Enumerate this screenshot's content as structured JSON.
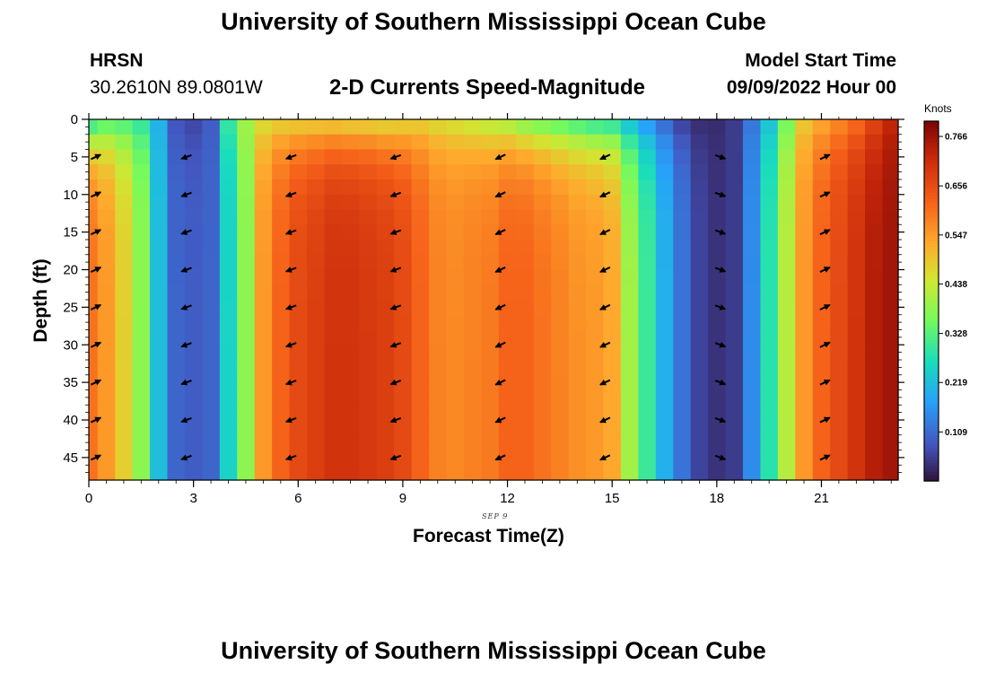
{
  "header": {
    "title": "University of Southern Mississippi Ocean Cube",
    "station": "HRSN",
    "coords": "30.2610N  89.0801W",
    "plot_title": "2-D Currents Speed-Magnitude",
    "model_start_label": "Model Start Time",
    "model_start_value": "09/09/2022 Hour 00"
  },
  "footer": {
    "title": "University of Southern Mississippi Ocean Cube"
  },
  "chart_data": {
    "type": "heatmap",
    "title": "2-D Currents Speed-Magnitude",
    "xlabel": "Forecast Time(Z)",
    "ylabel": "Depth (ft)",
    "x_date_label": "SEP 9",
    "xlim": [
      0,
      23.2
    ],
    "ylim": [
      48,
      0
    ],
    "x_ticks": [
      0,
      3,
      6,
      9,
      12,
      15,
      18,
      21
    ],
    "x_tick_labels": [
      "0",
      "3",
      "6",
      "9",
      "12",
      "15",
      "18",
      "21"
    ],
    "y_ticks": [
      0,
      5,
      10,
      15,
      20,
      25,
      30,
      35,
      40,
      45
    ],
    "y_tick_labels": [
      "0",
      "5",
      "10",
      "15",
      "20",
      "25",
      "30",
      "35",
      "40",
      "45"
    ],
    "colorbar": {
      "title": "Knots",
      "ticks": [
        0.766,
        0.656,
        0.547,
        0.438,
        0.328,
        0.219,
        0.109
      ],
      "tick_labels": [
        "0.766",
        "0.656",
        "0.547",
        "0.438",
        "0.328",
        "0.219",
        "0.109"
      ],
      "range": [
        0.0,
        0.8
      ]
    },
    "hours": [
      0,
      0.5,
      1,
      1.5,
      2,
      2.5,
      3,
      3.5,
      4,
      4.5,
      5,
      5.5,
      6,
      6.5,
      7,
      7.5,
      8,
      8.5,
      9,
      9.5,
      10,
      10.5,
      11,
      11.5,
      12,
      12.5,
      13,
      13.5,
      14,
      14.5,
      15,
      15.5,
      16,
      16.5,
      17,
      17.5,
      18,
      18.5,
      19,
      19.5,
      20,
      20.5,
      21,
      21.5,
      22,
      22.5,
      23
    ],
    "speed_deep_knots": [
      0.6,
      0.55,
      0.48,
      0.38,
      0.22,
      0.1,
      0.09,
      0.1,
      0.25,
      0.38,
      0.55,
      0.62,
      0.66,
      0.68,
      0.7,
      0.7,
      0.69,
      0.68,
      0.66,
      0.62,
      0.58,
      0.57,
      0.58,
      0.59,
      0.62,
      0.62,
      0.6,
      0.58,
      0.56,
      0.55,
      0.53,
      0.4,
      0.3,
      0.2,
      0.12,
      0.06,
      0.04,
      0.05,
      0.15,
      0.28,
      0.42,
      0.55,
      0.62,
      0.66,
      0.7,
      0.74,
      0.76
    ],
    "speed_surface_knots": [
      0.25,
      0.3,
      0.3,
      0.28,
      0.2,
      0.08,
      0.06,
      0.09,
      0.3,
      0.4,
      0.45,
      0.46,
      0.46,
      0.46,
      0.46,
      0.45,
      0.45,
      0.44,
      0.45,
      0.46,
      0.45,
      0.44,
      0.42,
      0.4,
      0.38,
      0.34,
      0.32,
      0.3,
      0.28,
      0.26,
      0.25,
      0.2,
      0.15,
      0.1,
      0.05,
      0.03,
      0.03,
      0.05,
      0.12,
      0.22,
      0.35,
      0.48,
      0.52,
      0.56,
      0.6,
      0.66,
      0.72
    ],
    "arrow_hours": [
      0.2,
      2.8,
      5.8,
      8.8,
      11.8,
      14.8,
      18.1,
      21.1
    ],
    "arrow_depths_ft": [
      5,
      10,
      15,
      20,
      25,
      30,
      35,
      40,
      45
    ],
    "arrow_direction_deg": [
      25,
      200,
      200,
      200,
      205,
      205,
      340,
      25
    ],
    "arrow_color": "#000000"
  }
}
